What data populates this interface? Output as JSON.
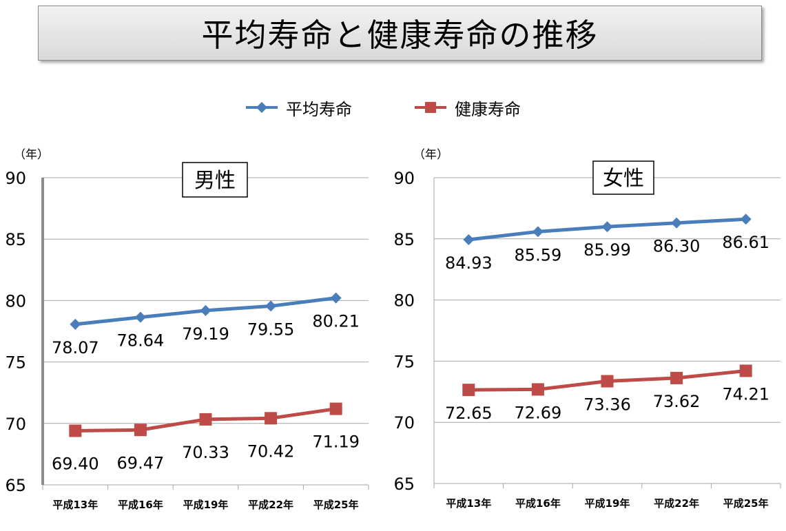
{
  "title": "平均寿命と健康寿命の推移",
  "legend": [
    {
      "name": "平均寿命",
      "color": "#4a7ebb",
      "marker": "diamond"
    },
    {
      "name": "健康寿命",
      "color": "#be4b48",
      "marker": "square"
    }
  ],
  "colors": {
    "average": "#4a7ebb",
    "healthy": "#be4b48",
    "grid": "#a6a6a6"
  },
  "chart_data": [
    {
      "type": "line",
      "title": "男性",
      "unit_label": "（年）",
      "categories": [
        "平成13年",
        "平成16年",
        "平成19年",
        "平成22年",
        "平成25年"
      ],
      "ylim": [
        65,
        90
      ],
      "yticks": [
        "65",
        "70",
        "75",
        "80",
        "85",
        "90"
      ],
      "grid": true,
      "series": [
        {
          "name": "平均寿命",
          "values": [
            78.07,
            78.64,
            79.19,
            79.55,
            80.21
          ],
          "labels": [
            "78.07",
            "78.64",
            "79.19",
            "79.55",
            "80.21"
          ]
        },
        {
          "name": "健康寿命",
          "values": [
            69.4,
            69.47,
            70.33,
            70.42,
            71.19
          ],
          "labels": [
            "69.40",
            "69.47",
            "70.33",
            "70.42",
            "71.19"
          ]
        }
      ]
    },
    {
      "type": "line",
      "title": "女性",
      "unit_label": "（年）",
      "categories": [
        "平成13年",
        "平成16年",
        "平成19年",
        "平成22年",
        "平成25年"
      ],
      "ylim": [
        65,
        90
      ],
      "yticks": [
        "65",
        "70",
        "75",
        "80",
        "85",
        "90"
      ],
      "grid": true,
      "series": [
        {
          "name": "平均寿命",
          "values": [
            84.93,
            85.59,
            85.99,
            86.3,
            86.61
          ],
          "labels": [
            "84.93",
            "85.59",
            "85.99",
            "86.30",
            "86.61"
          ]
        },
        {
          "name": "健康寿命",
          "values": [
            72.65,
            72.69,
            73.36,
            73.62,
            74.21
          ],
          "labels": [
            "72.65",
            "72.69",
            "73.36",
            "73.62",
            "74.21"
          ]
        }
      ]
    }
  ]
}
